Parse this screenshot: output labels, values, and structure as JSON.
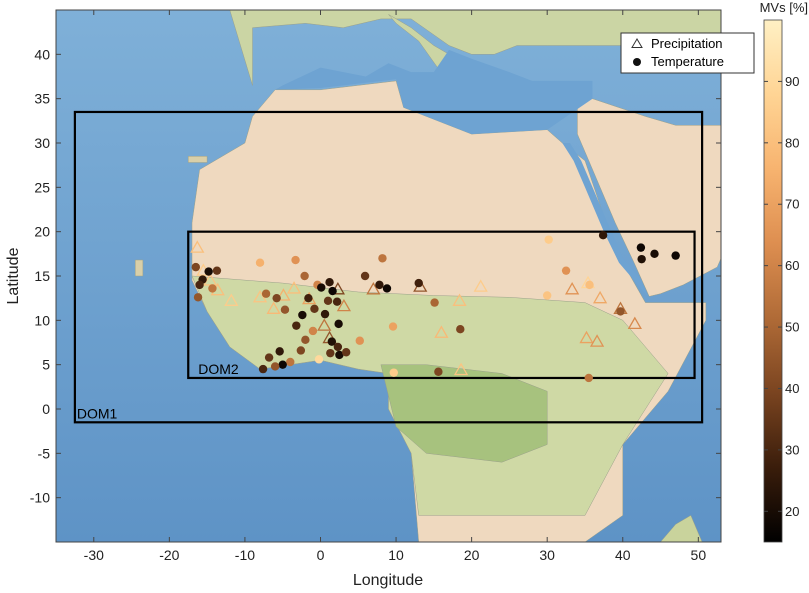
{
  "chart_data": {
    "type": "scatter",
    "xlabel": "Longitude",
    "ylabel": "Latitude",
    "xlim": [
      -35,
      53
    ],
    "ylim": [
      -15,
      45
    ],
    "xticks": [
      -30,
      -20,
      -10,
      0,
      10,
      20,
      30,
      40,
      50
    ],
    "yticks": [
      -10,
      -5,
      0,
      5,
      10,
      15,
      20,
      25,
      30,
      35,
      40
    ],
    "grid": false,
    "legend_position": "top-right",
    "legend": [
      {
        "label": "Precipitation",
        "marker": "open-triangle"
      },
      {
        "label": "Temperature",
        "marker": "filled-circle"
      }
    ],
    "colorbar": {
      "label": "MVs [%]",
      "range": [
        15,
        100
      ],
      "ticks": [
        20,
        30,
        40,
        50,
        60,
        70,
        80,
        90
      ],
      "colors": [
        "#000000",
        "#3a1d0b",
        "#7a4420",
        "#b06b37",
        "#dd8e50",
        "#f7b36f",
        "#ffd494",
        "#fff0c4"
      ]
    },
    "domains": [
      {
        "name": "DOM1",
        "lon": [
          -32.5,
          50.5
        ],
        "lat": [
          -1.5,
          33.5
        ]
      },
      {
        "name": "DOM2",
        "lon": [
          -17.5,
          49.5
        ],
        "lat": [
          3.5,
          20
        ]
      }
    ],
    "series": [
      {
        "name": "Precipitation",
        "points": [
          {
            "x": -16.3,
            "y": 18.2,
            "mv": 80
          },
          {
            "x": -15.5,
            "y": 15.6,
            "mv": 85
          },
          {
            "x": -14.6,
            "y": 14.5,
            "mv": 82
          },
          {
            "x": -13.6,
            "y": 13.4,
            "mv": 80
          },
          {
            "x": -11.8,
            "y": 12.2,
            "mv": 85
          },
          {
            "x": -8.0,
            "y": 12.6,
            "mv": 82
          },
          {
            "x": -6.2,
            "y": 11.3,
            "mv": 78
          },
          {
            "x": -4.9,
            "y": 12.8,
            "mv": 75
          },
          {
            "x": -3.5,
            "y": 13.6,
            "mv": 80
          },
          {
            "x": -1.5,
            "y": 12.4,
            "mv": 70
          },
          {
            "x": 0.5,
            "y": 9.4,
            "mv": 55
          },
          {
            "x": 1.2,
            "y": 8.0,
            "mv": 45
          },
          {
            "x": 2.3,
            "y": 13.5,
            "mv": 40
          },
          {
            "x": 3.1,
            "y": 11.6,
            "mv": 60
          },
          {
            "x": 7.0,
            "y": 13.5,
            "mv": 55
          },
          {
            "x": 13.2,
            "y": 13.8,
            "mv": 45
          },
          {
            "x": 16.0,
            "y": 8.6,
            "mv": 78
          },
          {
            "x": 18.4,
            "y": 12.2,
            "mv": 80
          },
          {
            "x": 21.2,
            "y": 13.8,
            "mv": 85
          },
          {
            "x": 18.6,
            "y": 4.4,
            "mv": 82
          },
          {
            "x": 33.3,
            "y": 13.5,
            "mv": 65
          },
          {
            "x": 35.4,
            "y": 14.2,
            "mv": 88
          },
          {
            "x": 37.0,
            "y": 12.5,
            "mv": 72
          },
          {
            "x": 35.2,
            "y": 8.0,
            "mv": 70
          },
          {
            "x": 36.6,
            "y": 7.6,
            "mv": 65
          },
          {
            "x": 39.7,
            "y": 11.3,
            "mv": 55
          },
          {
            "x": 41.6,
            "y": 9.6,
            "mv": 62
          }
        ]
      },
      {
        "name": "Temperature",
        "points": [
          {
            "x": -16.5,
            "y": 16.0,
            "mv": 40
          },
          {
            "x": -15.6,
            "y": 14.6,
            "mv": 25
          },
          {
            "x": -16.0,
            "y": 14.0,
            "mv": 30
          },
          {
            "x": -16.2,
            "y": 12.6,
            "mv": 45
          },
          {
            "x": -14.8,
            "y": 15.5,
            "mv": 20
          },
          {
            "x": -13.7,
            "y": 15.6,
            "mv": 35
          },
          {
            "x": -14.3,
            "y": 13.6,
            "mv": 55
          },
          {
            "x": -8.0,
            "y": 16.5,
            "mv": 75
          },
          {
            "x": -7.2,
            "y": 13.0,
            "mv": 50
          },
          {
            "x": -5.8,
            "y": 12.5,
            "mv": 40
          },
          {
            "x": -4.7,
            "y": 11.2,
            "mv": 45
          },
          {
            "x": -3.3,
            "y": 16.8,
            "mv": 65
          },
          {
            "x": -2.1,
            "y": 15.0,
            "mv": 50
          },
          {
            "x": -1.6,
            "y": 12.5,
            "mv": 28
          },
          {
            "x": -0.4,
            "y": 14.0,
            "mv": 60
          },
          {
            "x": 0.1,
            "y": 13.7,
            "mv": 20
          },
          {
            "x": -0.8,
            "y": 11.3,
            "mv": 35
          },
          {
            "x": 0.6,
            "y": 10.7,
            "mv": 25
          },
          {
            "x": -2.4,
            "y": 10.6,
            "mv": 20
          },
          {
            "x": -3.2,
            "y": 9.4,
            "mv": 30
          },
          {
            "x": -2.0,
            "y": 7.8,
            "mv": 45
          },
          {
            "x": -1.0,
            "y": 8.8,
            "mv": 60
          },
          {
            "x": 1.2,
            "y": 14.3,
            "mv": 25
          },
          {
            "x": 1.6,
            "y": 13.3,
            "mv": 18
          },
          {
            "x": 2.2,
            "y": 12.1,
            "mv": 30
          },
          {
            "x": 1.0,
            "y": 12.2,
            "mv": 35
          },
          {
            "x": 2.4,
            "y": 9.6,
            "mv": 20
          },
          {
            "x": 1.5,
            "y": 7.6,
            "mv": 22
          },
          {
            "x": 2.3,
            "y": 7.0,
            "mv": 30
          },
          {
            "x": 2.5,
            "y": 6.1,
            "mv": 20
          },
          {
            "x": 1.3,
            "y": 6.3,
            "mv": 35
          },
          {
            "x": -0.2,
            "y": 5.6,
            "mv": 90
          },
          {
            "x": -4.0,
            "y": 5.3,
            "mv": 55
          },
          {
            "x": -5.4,
            "y": 6.5,
            "mv": 25
          },
          {
            "x": -5.0,
            "y": 5.0,
            "mv": 18
          },
          {
            "x": -6.0,
            "y": 4.8,
            "mv": 45
          },
          {
            "x": -6.8,
            "y": 5.8,
            "mv": 35
          },
          {
            "x": -7.6,
            "y": 4.5,
            "mv": 30
          },
          {
            "x": -2.6,
            "y": 6.6,
            "mv": 40
          },
          {
            "x": 3.4,
            "y": 6.4,
            "mv": 35
          },
          {
            "x": 5.2,
            "y": 7.7,
            "mv": 65
          },
          {
            "x": 5.9,
            "y": 15.0,
            "mv": 35
          },
          {
            "x": 7.8,
            "y": 14.0,
            "mv": 25
          },
          {
            "x": 8.2,
            "y": 17.0,
            "mv": 55
          },
          {
            "x": 8.8,
            "y": 13.6,
            "mv": 18
          },
          {
            "x": 9.6,
            "y": 9.3,
            "mv": 70
          },
          {
            "x": 9.7,
            "y": 4.1,
            "mv": 85
          },
          {
            "x": 13.0,
            "y": 14.2,
            "mv": 28
          },
          {
            "x": 15.1,
            "y": 12.0,
            "mv": 50
          },
          {
            "x": 15.6,
            "y": 4.2,
            "mv": 40
          },
          {
            "x": 18.5,
            "y": 9.0,
            "mv": 40
          },
          {
            "x": 30.2,
            "y": 19.1,
            "mv": 85
          },
          {
            "x": 30.0,
            "y": 12.8,
            "mv": 82
          },
          {
            "x": 32.5,
            "y": 15.6,
            "mv": 65
          },
          {
            "x": 35.6,
            "y": 14.0,
            "mv": 80
          },
          {
            "x": 35.5,
            "y": 3.5,
            "mv": 55
          },
          {
            "x": 37.4,
            "y": 19.6,
            "mv": 25
          },
          {
            "x": 39.7,
            "y": 11.0,
            "mv": 45
          },
          {
            "x": 42.4,
            "y": 18.2,
            "mv": 18
          },
          {
            "x": 42.5,
            "y": 16.9,
            "mv": 22
          },
          {
            "x": 44.2,
            "y": 17.5,
            "mv": 20
          },
          {
            "x": 47.0,
            "y": 17.3,
            "mv": 18
          }
        ]
      }
    ]
  }
}
